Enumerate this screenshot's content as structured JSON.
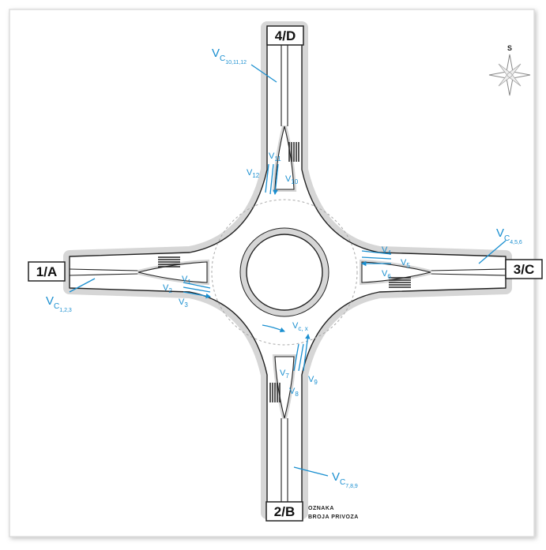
{
  "approaches": [
    {
      "label": "4/D"
    },
    {
      "label": "1/A"
    },
    {
      "label": "3/C"
    },
    {
      "label": "2/B"
    }
  ],
  "compass": "S",
  "legend": [
    "OZNAKA",
    "BROJA PRIVOZA"
  ],
  "conflict_flows": [
    {
      "main": "V",
      "sub": "C",
      "subsub": "10,11,12"
    },
    {
      "main": "V",
      "sub": "C",
      "subsub": "4,5,6"
    },
    {
      "main": "V",
      "sub": "C",
      "subsub": "1,2,3"
    },
    {
      "main": "V",
      "sub": "C",
      "subsub": "7,8,9"
    }
  ],
  "flows": [
    {
      "main": "V",
      "sub": "11"
    },
    {
      "main": "V",
      "sub": "12"
    },
    {
      "main": "V",
      "sub": "10"
    },
    {
      "main": "V",
      "sub": "4"
    },
    {
      "main": "V",
      "sub": "5"
    },
    {
      "main": "V",
      "sub": "6"
    },
    {
      "main": "V",
      "sub": "1"
    },
    {
      "main": "V",
      "sub": "2"
    },
    {
      "main": "V",
      "sub": "3"
    },
    {
      "main": "V",
      "sub": "c, x"
    },
    {
      "main": "V",
      "sub": "7"
    },
    {
      "main": "V",
      "sub": "9"
    },
    {
      "main": "V",
      "sub": "8"
    }
  ]
}
